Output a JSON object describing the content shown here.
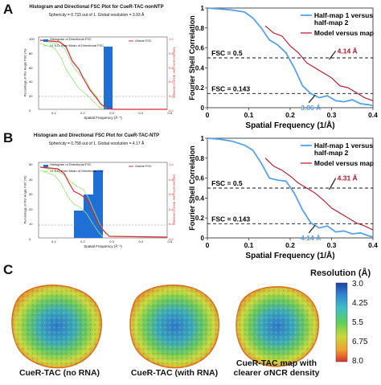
{
  "panels": {
    "A": {
      "letter": "A",
      "small": {
        "title": "Histogram and Directional FSC Plot for CueR-TAC-nonNTP",
        "subtitle": "Sphericity = 0.733 out of 1. Global resolution = 3.93 Å",
        "legend": [
          "Histogram of Directional FSC",
          "±1 S.D. from Mean of Directional FSC",
          "Global FSC"
        ],
        "ylabel_left": "Percentage of Per Angle FSC (%)",
        "ylabel_right": "Directional Fourier Shell Correlation",
        "xlabel": "Spatial Frequency (Å⁻¹)",
        "x_ticks": [
          "0.1",
          "0.2",
          "0.3",
          "0.4",
          "0.5"
        ],
        "y_left_ticks": [
          "100",
          "80",
          "60",
          "40",
          "20",
          "0"
        ],
        "y_right_ticks": [
          "1.0",
          "0.8",
          "0.6",
          "0.4",
          "0.2",
          "0.0"
        ]
      },
      "large": {
        "ylabel": "Fourier Shell Correlation",
        "xlabel": "Spatial Frequency (1/Å)",
        "x_ticks": [
          "0",
          "0.1",
          "0.2",
          "0.3",
          "0.4"
        ],
        "y_ticks": [
          "1",
          "0.8",
          "0.6",
          "0.4",
          "0.2",
          "0"
        ],
        "legend": [
          "Half-map 1 versus half-map 2",
          "Model versus map"
        ],
        "fsc_05": "FSC = 0.5",
        "fsc_0143": "FSC = 0.143",
        "res_model": "4.14 Å",
        "res_half": "3.86 Å"
      }
    },
    "B": {
      "letter": "B",
      "small": {
        "title": "Histogram and Directional FSC Plot for CueR-TAC-NTP",
        "subtitle": "Sphericity = 0.758 out of 1. Global resolution = 4.17 Å",
        "legend": [
          "Histogram of Directional FSC",
          "±1 S.D. from Mean of Directional FSC",
          "Global FSC"
        ],
        "ylabel_left": "Percentage of Per Angle FSC (%)",
        "ylabel_right": "Directional Fourier Shell Correlation",
        "xlabel": "Spatial Frequency (Å⁻¹)",
        "x_ticks": [
          "0.1",
          "0.2",
          "0.3",
          "0.4",
          "0.5"
        ],
        "y_left_ticks": [
          "50",
          "40",
          "30",
          "20",
          "10",
          "0"
        ],
        "y_right_ticks": [
          "1.0",
          "0.8",
          "0.6",
          "0.4",
          "0.2",
          "0.0"
        ]
      },
      "large": {
        "ylabel": "Fourier Shell Correlation",
        "xlabel": "Spatial Frequency (1/Å)",
        "x_ticks": [
          "0",
          "0.1",
          "0.2",
          "0.3",
          "0.4"
        ],
        "y_ticks": [
          "1",
          "0.8",
          "0.6",
          "0.4",
          "0.2",
          "0"
        ],
        "legend": [
          "Half-map 1 versus half-map 2",
          "Model versus map"
        ],
        "fsc_05": "FSC = 0.5",
        "fsc_0143": "FSC = 0.143",
        "res_model": "4.31 Å",
        "res_half": "4.14 Å"
      }
    },
    "C": {
      "letter": "C",
      "captions": [
        "CueR-TAC (no RNA)",
        "CueR-TAC (with RNA)",
        "CueR-TAC map with clearer σNCR density"
      ],
      "colorbar_title": "Resolution (Å)",
      "colorbar_ticks": [
        "3.0",
        "4.25",
        "5.5",
        "6.75",
        "8.0"
      ]
    }
  },
  "colors": {
    "half_map": "#5aa0e6",
    "model_map": "#b0152a",
    "hist": "#1e6fd6",
    "sd": "#9be07a",
    "global_fsc": "#d42a2a",
    "arrow": "#1a1a1a"
  },
  "chart_data": [
    {
      "type": "line",
      "panel": "A",
      "xlabel": "Spatial Frequency (1/Å)",
      "ylabel": "Fourier Shell Correlation",
      "xlim": [
        0,
        0.4
      ],
      "ylim": [
        0,
        1
      ],
      "series": [
        {
          "name": "Half-map 1 versus half-map 2",
          "x": [
            0,
            0.03,
            0.06,
            0.09,
            0.11,
            0.13,
            0.15,
            0.17,
            0.19,
            0.21,
            0.23,
            0.25,
            0.27,
            0.29,
            0.31,
            0.33,
            0.35,
            0.37,
            0.39,
            0.4
          ],
          "y": [
            1,
            0.99,
            0.98,
            0.96,
            0.9,
            0.8,
            0.68,
            0.63,
            0.55,
            0.4,
            0.22,
            0.14,
            0.1,
            0.12,
            0.07,
            0.06,
            0.08,
            0.04,
            0.03,
            0.02
          ]
        },
        {
          "name": "Model versus map",
          "x": [
            0.14,
            0.16,
            0.18,
            0.2,
            0.22,
            0.24,
            0.26,
            0.28,
            0.3,
            0.32,
            0.34,
            0.36,
            0.38,
            0.4
          ],
          "y": [
            0.82,
            0.75,
            0.72,
            0.62,
            0.55,
            0.45,
            0.4,
            0.35,
            0.3,
            0.22,
            0.2,
            0.15,
            0.1,
            0.07
          ]
        }
      ]
    },
    {
      "type": "line",
      "panel": "B",
      "xlabel": "Spatial Frequency (1/Å)",
      "ylabel": "Fourier Shell Correlation",
      "xlim": [
        0,
        0.4
      ],
      "ylim": [
        0,
        1
      ],
      "series": [
        {
          "name": "Half-map 1 versus half-map 2",
          "x": [
            0,
            0.03,
            0.06,
            0.09,
            0.11,
            0.13,
            0.15,
            0.17,
            0.19,
            0.21,
            0.23,
            0.25,
            0.27,
            0.29,
            0.31,
            0.33,
            0.35,
            0.37,
            0.39,
            0.4
          ],
          "y": [
            1,
            0.99,
            0.97,
            0.93,
            0.88,
            0.75,
            0.6,
            0.58,
            0.57,
            0.45,
            0.28,
            0.15,
            0.1,
            0.12,
            0.06,
            0.07,
            0.04,
            0.05,
            0.02,
            0.01
          ]
        },
        {
          "name": "Model versus map",
          "x": [
            0.14,
            0.16,
            0.18,
            0.2,
            0.22,
            0.24,
            0.26,
            0.28,
            0.3,
            0.32,
            0.34,
            0.36,
            0.38,
            0.4
          ],
          "y": [
            0.8,
            0.72,
            0.68,
            0.62,
            0.55,
            0.5,
            0.45,
            0.38,
            0.3,
            0.25,
            0.2,
            0.15,
            0.12,
            0.08
          ]
        }
      ]
    }
  ]
}
